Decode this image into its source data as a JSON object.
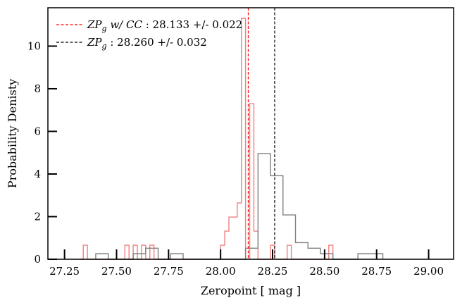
{
  "chart_data": {
    "type": "histogram",
    "xlabel": "Zeropoint [ mag ]",
    "ylabel": "Probability Denisty",
    "xlim": [
      27.17,
      29.12
    ],
    "ylim": [
      0,
      11.8
    ],
    "xticks": [
      27.25,
      27.5,
      27.75,
      28.0,
      28.25,
      28.5,
      28.75,
      29.0
    ],
    "xtick_labels": [
      "27.25",
      "27.50",
      "27.75",
      "28.00",
      "28.25",
      "28.50",
      "28.75",
      "29.00"
    ],
    "yticks": [
      0,
      2,
      4,
      6,
      8,
      10
    ],
    "ytick_labels": [
      "0",
      "2",
      "4",
      "6",
      "8",
      "10"
    ],
    "grid": false,
    "legend_position": "top-left",
    "series": [
      {
        "name_parts": [
          "ZP",
          "g",
          " w/ CC",
          " : 28.133 +/- 0.022"
        ],
        "color": "#f08080",
        "line_color": "#ff0000",
        "line_x": 28.133,
        "edges": [
          27.32,
          27.34,
          27.36,
          27.38,
          27.4,
          27.42,
          27.44,
          27.46,
          27.48,
          27.5,
          27.52,
          27.54,
          27.56,
          27.58,
          27.6,
          27.62,
          27.64,
          27.66,
          27.68,
          27.7,
          27.72,
          27.74,
          27.76,
          27.78,
          27.8,
          27.82,
          27.84,
          27.86,
          27.88,
          27.9,
          27.92,
          27.94,
          27.96,
          27.98,
          28.0,
          28.02,
          28.04,
          28.06,
          28.08,
          28.1,
          28.12,
          28.14,
          28.16,
          28.18,
          28.2,
          28.22,
          28.24,
          28.26,
          28.28,
          28.3,
          28.32,
          28.34,
          28.36,
          28.38,
          28.4,
          28.42,
          28.44,
          28.46,
          28.48,
          28.5,
          28.52,
          28.54
        ],
        "values": [
          0,
          0.66,
          0,
          0,
          0,
          0,
          0,
          0,
          0,
          0,
          0,
          0.66,
          0,
          0.66,
          0,
          0.66,
          0,
          0.66,
          0,
          0,
          0,
          0,
          0,
          0,
          0,
          0,
          0,
          0,
          0,
          0,
          0,
          0,
          0,
          0,
          0.66,
          1.32,
          1.98,
          1.98,
          2.64,
          11.3,
          0,
          7.3,
          1.32,
          0,
          0,
          0,
          0.66,
          0,
          0,
          0,
          0.66,
          0,
          0,
          0,
          0,
          0,
          0,
          0,
          0,
          0,
          0.66
        ]
      },
      {
        "name_parts": [
          "ZP",
          "g",
          "",
          " : 28.260 +/- 0.032"
        ],
        "color": "#808080",
        "line_color": "#000000",
        "line_x": 28.26,
        "edges": [
          27.4,
          27.46,
          27.52,
          27.58,
          27.64,
          27.7,
          27.76,
          27.82,
          27.88,
          27.94,
          28.0,
          28.06,
          28.12,
          28.18,
          28.24,
          28.3,
          28.36,
          28.42,
          28.48,
          28.54,
          28.6,
          28.66,
          28.72,
          28.78
        ],
        "values": [
          0.26,
          0,
          0,
          0.26,
          0.52,
          0,
          0.26,
          0,
          0,
          0,
          0,
          0,
          0.52,
          4.96,
          3.92,
          2.08,
          0.78,
          0.52,
          0.26,
          0,
          0,
          0.26,
          0.26
        ]
      }
    ]
  }
}
